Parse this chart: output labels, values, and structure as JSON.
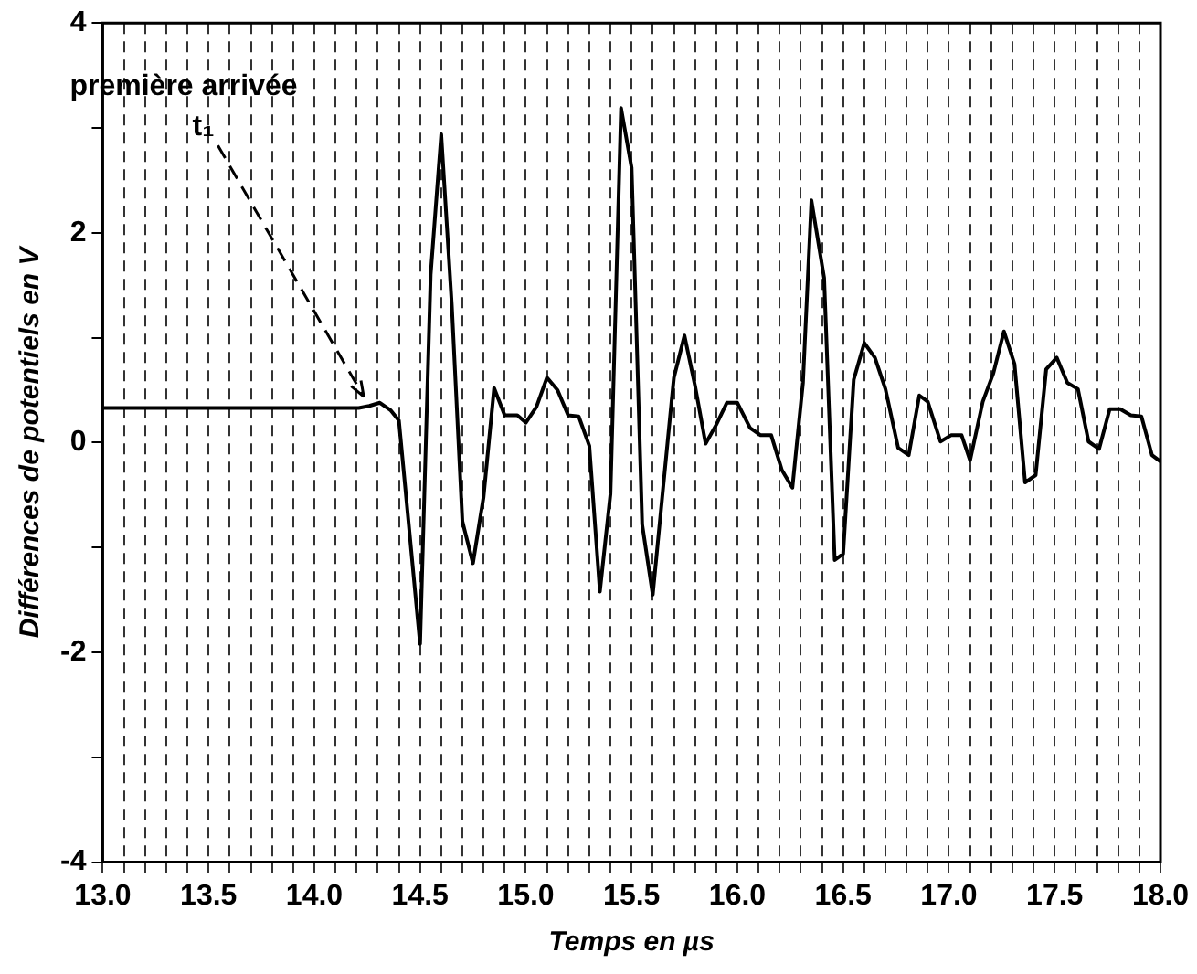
{
  "chart_data": {
    "type": "line",
    "xlabel": "Temps en µs",
    "ylabel": "Différences de potentiels en V",
    "x": [
      13.0,
      14.21,
      14.26,
      14.31,
      14.36,
      14.4,
      14.5,
      14.55,
      14.6,
      14.65,
      14.7,
      14.75,
      14.8,
      14.85,
      14.9,
      14.96,
      15.0,
      15.05,
      15.1,
      15.15,
      15.2,
      15.25,
      15.3,
      15.35,
      15.4,
      15.45,
      15.5,
      15.55,
      15.6,
      15.65,
      15.7,
      15.75,
      15.8,
      15.85,
      15.9,
      15.95,
      16.0,
      16.06,
      16.11,
      16.16,
      16.21,
      16.26,
      16.31,
      16.35,
      16.41,
      16.46,
      16.5,
      16.55,
      16.6,
      16.65,
      16.7,
      16.76,
      16.81,
      16.86,
      16.9,
      16.96,
      17.01,
      17.06,
      17.1,
      17.16,
      17.21,
      17.26,
      17.31,
      17.36,
      17.41,
      17.46,
      17.51,
      17.56,
      17.61,
      17.66,
      17.71,
      17.76,
      17.81,
      17.86,
      17.91,
      17.96,
      18.0
    ],
    "series": [
      {
        "color": "#000000",
        "values": [
          0.33,
          0.33,
          0.35,
          0.38,
          0.31,
          0.21,
          -1.92,
          1.6,
          2.94,
          1.31,
          -0.75,
          -1.15,
          -0.52,
          0.52,
          0.26,
          0.26,
          0.19,
          0.34,
          0.62,
          0.5,
          0.26,
          0.25,
          -0.03,
          -1.42,
          -0.49,
          3.19,
          2.62,
          -0.78,
          -1.45,
          -0.41,
          0.62,
          1.02,
          0.54,
          -0.01,
          0.17,
          0.38,
          0.38,
          0.14,
          0.07,
          0.07,
          -0.26,
          -0.43,
          0.57,
          2.31,
          1.57,
          -1.12,
          -1.06,
          0.6,
          0.95,
          0.81,
          0.51,
          -0.05,
          -0.12,
          0.45,
          0.39,
          0.01,
          0.07,
          0.07,
          -0.17,
          0.39,
          0.66,
          1.06,
          0.75,
          -0.38,
          -0.31,
          0.7,
          0.81,
          0.57,
          0.51,
          0.01,
          -0.06,
          0.32,
          0.32,
          0.26,
          0.25,
          -0.12,
          -0.18
        ]
      }
    ],
    "xlim": [
      13.0,
      18.0
    ],
    "xticks": [
      {
        "value": 13.0,
        "label": "13.0"
      },
      {
        "value": 13.1,
        "label": null
      },
      {
        "value": 13.2,
        "label": null
      },
      {
        "value": 13.3,
        "label": null
      },
      {
        "value": 13.4,
        "label": null
      },
      {
        "value": 13.5,
        "label": "13.5"
      },
      {
        "value": 13.6,
        "label": null
      },
      {
        "value": 13.7,
        "label": null
      },
      {
        "value": 13.8,
        "label": null
      },
      {
        "value": 13.9,
        "label": null
      },
      {
        "value": 14.0,
        "label": "14.0"
      },
      {
        "value": 14.1,
        "label": null
      },
      {
        "value": 14.2,
        "label": null
      },
      {
        "value": 14.3,
        "label": null
      },
      {
        "value": 14.4,
        "label": null
      },
      {
        "value": 14.5,
        "label": "14.5"
      },
      {
        "value": 14.6,
        "label": null
      },
      {
        "value": 14.7,
        "label": null
      },
      {
        "value": 14.8,
        "label": null
      },
      {
        "value": 14.9,
        "label": null
      },
      {
        "value": 15.0,
        "label": "15.0"
      },
      {
        "value": 15.1,
        "label": null
      },
      {
        "value": 15.2,
        "label": null
      },
      {
        "value": 15.3,
        "label": null
      },
      {
        "value": 15.4,
        "label": null
      },
      {
        "value": 15.5,
        "label": "15.5"
      },
      {
        "value": 15.6,
        "label": null
      },
      {
        "value": 15.7,
        "label": null
      },
      {
        "value": 15.8,
        "label": null
      },
      {
        "value": 15.9,
        "label": null
      },
      {
        "value": 16.0,
        "label": "16.0"
      },
      {
        "value": 16.1,
        "label": null
      },
      {
        "value": 16.2,
        "label": null
      },
      {
        "value": 16.3,
        "label": null
      },
      {
        "value": 16.4,
        "label": null
      },
      {
        "value": 16.5,
        "label": "16.5"
      },
      {
        "value": 16.6,
        "label": null
      },
      {
        "value": 16.7,
        "label": null
      },
      {
        "value": 16.8,
        "label": null
      },
      {
        "value": 16.9,
        "label": null
      },
      {
        "value": 17.0,
        "label": "17.0"
      },
      {
        "value": 17.1,
        "label": null
      },
      {
        "value": 17.2,
        "label": null
      },
      {
        "value": 17.3,
        "label": null
      },
      {
        "value": 17.4,
        "label": null
      },
      {
        "value": 17.5,
        "label": "17.5"
      },
      {
        "value": 17.6,
        "label": null
      },
      {
        "value": 17.7,
        "label": null
      },
      {
        "value": 17.8,
        "label": null
      },
      {
        "value": 17.9,
        "label": null
      },
      {
        "value": 18.0,
        "label": "18.0"
      }
    ],
    "ylim": [
      -4,
      4
    ],
    "yticks": [
      -4,
      {
        "value": -3,
        "label": null
      },
      -2,
      {
        "value": -1,
        "label": null
      },
      0,
      {
        "value": 1,
        "label": null
      },
      2,
      {
        "value": 3,
        "label": null
      },
      4
    ],
    "grid": "x",
    "marker": "none",
    "line_style": "solid",
    "annotations": [
      "première arrivée",
      {
        "text": "t₁",
        "x": 14.26,
        "y": 0.35
      }
    ]
  }
}
